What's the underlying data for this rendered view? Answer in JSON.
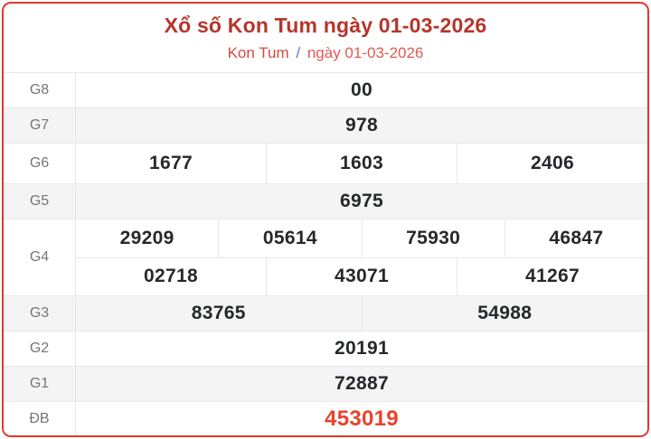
{
  "header": {
    "title": "Xổ số Kon Tum ngày 01-03-2026",
    "breadcrumb": {
      "region": "Kon Tum",
      "separator": "/",
      "date": "ngày 01-03-2026"
    }
  },
  "colors": {
    "card_border": "#dd3a2e",
    "title_red": "#b6352b",
    "link_red": "#d24a43",
    "link_red_light": "#e05a52",
    "sep_blue": "#4a7fd4",
    "alt_row_bg": "#f4f4f5",
    "grid_border": "#e8e8e8",
    "label_gray": "#74757a",
    "number_dark": "#26282c",
    "special_red": "#e8432c"
  },
  "table": {
    "rows": [
      {
        "label": "G8",
        "groups": [
          [
            "00"
          ]
        ]
      },
      {
        "label": "G7",
        "groups": [
          [
            "978"
          ]
        ]
      },
      {
        "label": "G6",
        "groups": [
          [
            "1677",
            "1603",
            "2406"
          ]
        ]
      },
      {
        "label": "G5",
        "groups": [
          [
            "6975"
          ]
        ]
      },
      {
        "label": "G4",
        "groups": [
          [
            "29209",
            "05614",
            "75930",
            "46847"
          ],
          [
            "02718",
            "43071",
            "41267"
          ]
        ]
      },
      {
        "label": "G3",
        "groups": [
          [
            "83765",
            "54988"
          ]
        ]
      },
      {
        "label": "G2",
        "groups": [
          [
            "20191"
          ]
        ]
      },
      {
        "label": "G1",
        "groups": [
          [
            "72887"
          ]
        ]
      },
      {
        "label": "ĐB",
        "groups": [
          [
            "453019"
          ]
        ],
        "special": true
      }
    ]
  }
}
